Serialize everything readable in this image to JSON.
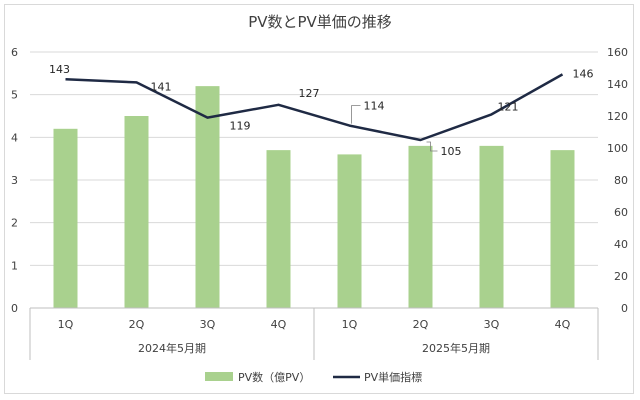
{
  "chart_data": {
    "type": "bar+line",
    "title": "PV数とPV単価の推移",
    "groups": [
      "2024年5月期",
      "2025年5月期"
    ],
    "categories": [
      "1Q",
      "2Q",
      "3Q",
      "4Q",
      "1Q",
      "2Q",
      "3Q",
      "4Q"
    ],
    "series": [
      {
        "name": "PV数（億PV）",
        "type": "bar",
        "axis": "left",
        "color": "#a9d18e",
        "values": [
          4.2,
          4.5,
          5.2,
          3.7,
          3.6,
          3.8,
          3.8,
          3.7
        ]
      },
      {
        "name": "PV単価指標",
        "type": "line",
        "axis": "right",
        "color": "#1f2a44",
        "values": [
          143,
          141,
          119,
          127,
          114,
          105,
          121,
          146
        ],
        "labels": [
          "143",
          "141",
          "119",
          "127",
          "114",
          "105",
          "121",
          "146"
        ]
      }
    ],
    "y_left": {
      "min": 0,
      "max": 6,
      "ticks": [
        "0",
        "1",
        "2",
        "3",
        "4",
        "5",
        "6"
      ]
    },
    "y_right": {
      "min": 0,
      "max": 160,
      "ticks": [
        "0",
        "20",
        "40",
        "60",
        "80",
        "100",
        "120",
        "140",
        "160"
      ]
    },
    "grid": true,
    "legend": "bottom"
  }
}
